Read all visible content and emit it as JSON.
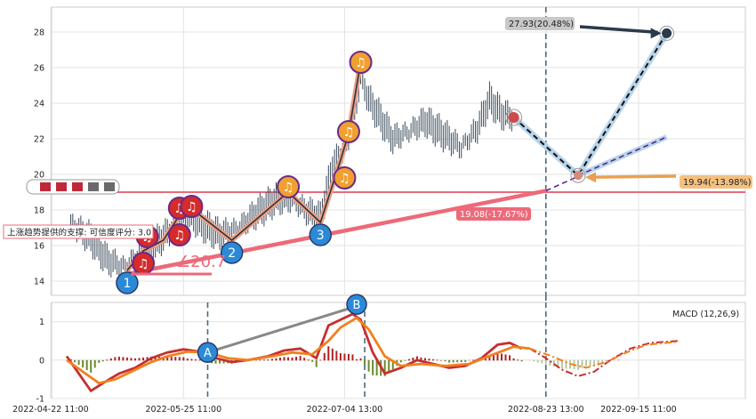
{
  "chart_data": [
    {
      "type": "line",
      "panel": "price",
      "y_ticks": [
        14,
        16,
        18,
        20,
        22,
        24,
        26,
        28
      ],
      "ylim": [
        13.2,
        29.4
      ],
      "grid": true,
      "waves": {
        "labels": [
          "1",
          "2",
          "3"
        ],
        "points": [
          {
            "label": "1",
            "x": "2022-05-11",
            "y": 14.6
          },
          {
            "label": "2",
            "x": "2022-06-06",
            "y": 16.3
          },
          {
            "label": "3",
            "x": "2022-06-28",
            "y": 17.3
          }
        ]
      },
      "zigzag": [
        {
          "x": "2022-05-11",
          "y": 14.6
        },
        {
          "x": "2022-05-15",
          "y": 15.7
        },
        {
          "x": "2022-05-20",
          "y": 16.3
        },
        {
          "x": "2022-05-24",
          "y": 17.7
        },
        {
          "x": "2022-05-28",
          "y": 17.9
        },
        {
          "x": "2022-06-06",
          "y": 16.3
        },
        {
          "x": "2022-06-20",
          "y": 19.0
        },
        {
          "x": "2022-06-28",
          "y": 17.3
        },
        {
          "x": "2022-07-03",
          "y": 20.8
        },
        {
          "x": "2022-07-05",
          "y": 22.3
        },
        {
          "x": "2022-07-08",
          "y": 26.3
        }
      ],
      "signal_markers": [
        {
          "x": "2022-05-15",
          "y": 15.0,
          "color": "#d62b2b"
        },
        {
          "x": "2022-05-16",
          "y": 16.5,
          "color": "#d62b2b"
        },
        {
          "x": "2022-05-24",
          "y": 16.6,
          "color": "#d62b2b"
        },
        {
          "x": "2022-05-24",
          "y": 18.1,
          "color": "#d62b2b"
        },
        {
          "x": "2022-05-27",
          "y": 18.2,
          "color": "#d62b2b"
        },
        {
          "x": "2022-06-20",
          "y": 19.3,
          "color": "#f0a030"
        },
        {
          "x": "2022-07-04",
          "y": 19.8,
          "color": "#f0a030"
        },
        {
          "x": "2022-07-05",
          "y": 22.4,
          "color": "#f0a030"
        },
        {
          "x": "2022-07-08",
          "y": 26.3,
          "color": "#f0a030"
        }
      ],
      "price_path": [
        [
          "2022-04-27",
          17.2
        ],
        [
          "2022-05-02",
          16.4
        ],
        [
          "2022-05-06",
          15.2
        ],
        [
          "2022-05-10",
          14.8
        ],
        [
          "2022-05-14",
          15.3
        ],
        [
          "2022-05-18",
          16.1
        ],
        [
          "2022-05-22",
          16.9
        ],
        [
          "2022-05-26",
          17.6
        ],
        [
          "2022-05-30",
          17.1
        ],
        [
          "2022-06-03",
          16.6
        ],
        [
          "2022-06-07",
          16.9
        ],
        [
          "2022-06-12",
          17.8
        ],
        [
          "2022-06-17",
          18.6
        ],
        [
          "2022-06-21",
          18.5
        ],
        [
          "2022-06-25",
          17.9
        ],
        [
          "2022-06-28",
          17.5
        ],
        [
          "2022-07-01",
          20.5
        ],
        [
          "2022-07-04",
          21.4
        ],
        [
          "2022-07-06",
          22.6
        ],
        [
          "2022-07-08",
          25.5
        ],
        [
          "2022-07-10",
          24.2
        ],
        [
          "2022-07-13",
          23.1
        ],
        [
          "2022-07-16",
          22.0
        ],
        [
          "2022-07-20",
          22.4
        ],
        [
          "2022-07-24",
          23.0
        ],
        [
          "2022-07-27",
          22.5
        ],
        [
          "2022-07-30",
          22.0
        ],
        [
          "2022-08-02",
          21.5
        ],
        [
          "2022-08-06",
          22.6
        ],
        [
          "2022-08-09",
          24.2
        ],
        [
          "2022-08-12",
          23.4
        ],
        [
          "2022-08-15",
          23.2
        ]
      ],
      "support_line": {
        "from": {
          "x": "2022-05-11",
          "y": 14.4
        },
        "to": {
          "x": "2022-08-23",
          "y": 19.08
        }
      },
      "resistance_y": 19.0,
      "last_point": {
        "x": "2022-08-15",
        "y": 23.2
      },
      "projections": [
        {
          "label": "19.94(-13.98%)",
          "x": "2022-08-31",
          "y": 19.94
        },
        {
          "label": "27.93(20.48%)",
          "x": "2022-09-22",
          "y": 27.93
        },
        {
          "label": "19.08(-17.67%)",
          "x": "2022-08-23",
          "y": 19.08
        },
        {
          "x": "2022-09-22",
          "y": 22.1
        }
      ],
      "support_note": "上涨趋势提供的支撑: 可信度评分: 3.0",
      "angle_label": "∠20.7",
      "vlines": [
        "2022-08-23"
      ]
    },
    {
      "type": "bar",
      "panel": "macd",
      "legend": "MACD (12,26,9)",
      "y_ticks": [
        -1,
        0,
        1
      ],
      "ylim": [
        -1.0,
        1.5
      ],
      "grid": true,
      "divergence_points": [
        {
          "label": "A",
          "x": "2022-05-31",
          "y": 0.2
        },
        {
          "label": "B",
          "x": "2022-07-07",
          "y": 1.45
        }
      ],
      "macd_line": [
        [
          "2022-04-26",
          0.1
        ],
        [
          "2022-04-29",
          -0.35
        ],
        [
          "2022-05-02",
          -0.8
        ],
        [
          "2022-05-05",
          -0.6
        ],
        [
          "2022-05-09",
          -0.35
        ],
        [
          "2022-05-13",
          -0.2
        ],
        [
          "2022-05-17",
          0.05
        ],
        [
          "2022-05-21",
          0.2
        ],
        [
          "2022-05-25",
          0.28
        ],
        [
          "2022-05-29",
          0.22
        ],
        [
          "2022-06-02",
          0.05
        ],
        [
          "2022-06-06",
          -0.05
        ],
        [
          "2022-06-10",
          0.0
        ],
        [
          "2022-06-15",
          0.1
        ],
        [
          "2022-06-19",
          0.25
        ],
        [
          "2022-06-23",
          0.3
        ],
        [
          "2022-06-27",
          0.05
        ],
        [
          "2022-06-30",
          0.9
        ],
        [
          "2022-07-03",
          1.05
        ],
        [
          "2022-07-06",
          1.2
        ],
        [
          "2022-07-08",
          1.05
        ],
        [
          "2022-07-11",
          0.2
        ],
        [
          "2022-07-14",
          -0.35
        ],
        [
          "2022-07-18",
          -0.2
        ],
        [
          "2022-07-22",
          0.0
        ],
        [
          "2022-07-26",
          -0.1
        ],
        [
          "2022-07-30",
          -0.2
        ],
        [
          "2022-08-03",
          -0.15
        ],
        [
          "2022-08-07",
          0.05
        ],
        [
          "2022-08-11",
          0.4
        ],
        [
          "2022-08-14",
          0.45
        ],
        [
          "2022-08-17",
          0.3
        ]
      ],
      "signal_line": [
        [
          "2022-04-26",
          0.0
        ],
        [
          "2022-04-30",
          -0.3
        ],
        [
          "2022-05-04",
          -0.6
        ],
        [
          "2022-05-08",
          -0.5
        ],
        [
          "2022-05-12",
          -0.3
        ],
        [
          "2022-05-17",
          -0.05
        ],
        [
          "2022-05-21",
          0.1
        ],
        [
          "2022-05-26",
          0.22
        ],
        [
          "2022-05-31",
          0.2
        ],
        [
          "2022-06-05",
          0.05
        ],
        [
          "2022-06-10",
          0.0
        ],
        [
          "2022-06-16",
          0.1
        ],
        [
          "2022-06-21",
          0.2
        ],
        [
          "2022-06-26",
          0.15
        ],
        [
          "2022-06-30",
          0.5
        ],
        [
          "2022-07-03",
          0.85
        ],
        [
          "2022-07-07",
          1.1
        ],
        [
          "2022-07-10",
          0.8
        ],
        [
          "2022-07-14",
          0.1
        ],
        [
          "2022-07-18",
          -0.15
        ],
        [
          "2022-07-23",
          -0.1
        ],
        [
          "2022-07-29",
          -0.15
        ],
        [
          "2022-08-04",
          -0.1
        ],
        [
          "2022-08-10",
          0.15
        ],
        [
          "2022-08-15",
          0.35
        ],
        [
          "2022-08-19",
          0.3
        ]
      ],
      "macd_projection": [
        [
          "2022-08-19",
          0.3
        ],
        [
          "2022-08-23",
          0.05
        ],
        [
          "2022-08-27",
          -0.25
        ],
        [
          "2022-08-31",
          -0.42
        ],
        [
          "2022-09-04",
          -0.3
        ],
        [
          "2022-09-08",
          0.0
        ],
        [
          "2022-09-13",
          0.3
        ],
        [
          "2022-09-18",
          0.45
        ],
        [
          "2022-09-25",
          0.5
        ]
      ],
      "signal_projection": [
        [
          "2022-08-19",
          0.3
        ],
        [
          "2022-08-24",
          0.12
        ],
        [
          "2022-08-29",
          -0.1
        ],
        [
          "2022-09-02",
          -0.2
        ],
        [
          "2022-09-07",
          -0.05
        ],
        [
          "2022-09-12",
          0.2
        ],
        [
          "2022-09-17",
          0.4
        ],
        [
          "2022-09-25",
          0.48
        ]
      ],
      "vlines": [
        "2022-05-31",
        "2022-07-09",
        "2022-08-23"
      ],
      "x_tick_labels": [
        "2022-04-22 11:00",
        "2022-05-25 11:00",
        "2022-07-04 13:00",
        "2022-08-23 13:00",
        "2022-09-15 11:00"
      ]
    }
  ]
}
